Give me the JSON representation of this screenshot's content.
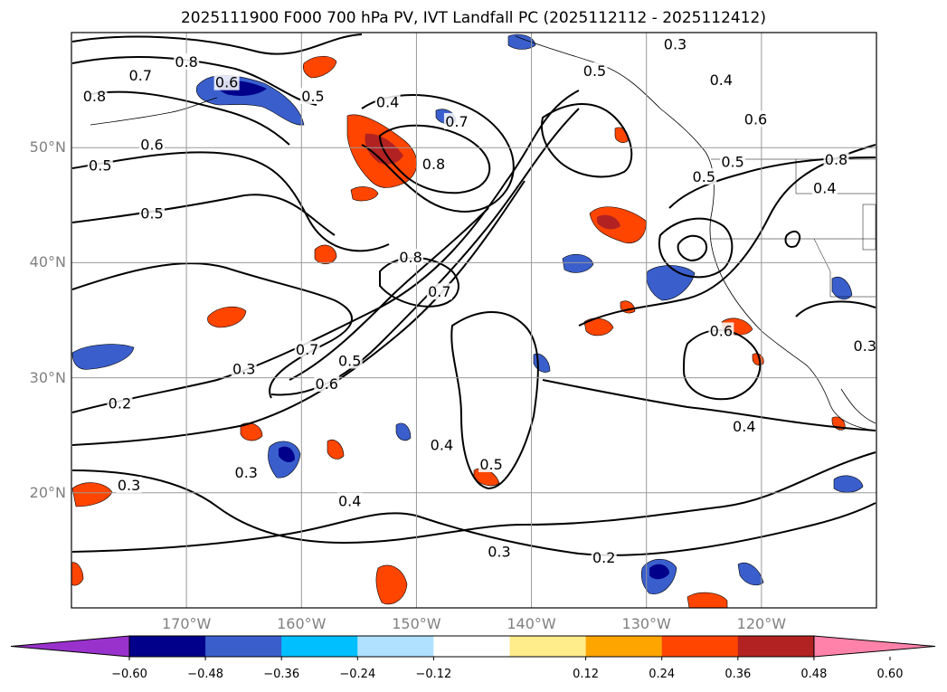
{
  "title": "2025111900 F000 700 hPa PV, IVT Landfall PC (2025112112 - 2025112412)",
  "map": {
    "projection": "equirectangular",
    "lon_range": [
      -180,
      -110
    ],
    "lat_range": [
      10,
      60
    ],
    "lat_ticks": [
      {
        "value": 20,
        "label": "20°N"
      },
      {
        "value": 30,
        "label": "30°N"
      },
      {
        "value": 40,
        "label": "40°N"
      },
      {
        "value": 50,
        "label": "50°N"
      }
    ],
    "lon_ticks": [
      {
        "value": -170,
        "label": "170°W"
      },
      {
        "value": -160,
        "label": "160°W"
      },
      {
        "value": -150,
        "label": "150°W"
      },
      {
        "value": -140,
        "label": "140°W"
      },
      {
        "value": -130,
        "label": "130°W"
      },
      {
        "value": -120,
        "label": "120°W"
      }
    ],
    "contour_labels": [
      {
        "text": "0.8",
        "lon": -170,
        "lat": 57.5
      },
      {
        "text": "0.7",
        "lon": -174,
        "lat": 56.3
      },
      {
        "text": "0.6",
        "lon": -166.5,
        "lat": 55.7
      },
      {
        "text": "0.8",
        "lon": -178,
        "lat": 54.5
      },
      {
        "text": "0.6",
        "lon": -173,
        "lat": 50.3
      },
      {
        "text": "0.5",
        "lon": -177.5,
        "lat": 48.5
      },
      {
        "text": "0.5",
        "lon": -173,
        "lat": 44.3
      },
      {
        "text": "0.5",
        "lon": -159,
        "lat": 54.5
      },
      {
        "text": "0.4",
        "lon": -152.5,
        "lat": 54
      },
      {
        "text": "0.7",
        "lon": -146.5,
        "lat": 52.3
      },
      {
        "text": "0.8",
        "lon": -148.5,
        "lat": 48.6
      },
      {
        "text": "0.8",
        "lon": -150.5,
        "lat": 40.5
      },
      {
        "text": "0.7",
        "lon": -148,
        "lat": 37.5
      },
      {
        "text": "0.7",
        "lon": -159.5,
        "lat": 32.5
      },
      {
        "text": "0.3",
        "lon": -165,
        "lat": 30.8
      },
      {
        "text": "0.6",
        "lon": -157.8,
        "lat": 29.5
      },
      {
        "text": "0.5",
        "lon": -155.8,
        "lat": 31.5
      },
      {
        "text": "0.2",
        "lon": -175.8,
        "lat": 27.8
      },
      {
        "text": "0.3",
        "lon": -164.8,
        "lat": 21.8
      },
      {
        "text": "0.3",
        "lon": -175,
        "lat": 20.7
      },
      {
        "text": "0.4",
        "lon": -155.8,
        "lat": 19.3
      },
      {
        "text": "0.4",
        "lon": -147.8,
        "lat": 24.2
      },
      {
        "text": "0.5",
        "lon": -143.5,
        "lat": 22.5
      },
      {
        "text": "0.3",
        "lon": -142.8,
        "lat": 14.9
      },
      {
        "text": "0.2",
        "lon": -133.7,
        "lat": 14.4
      },
      {
        "text": "0.5",
        "lon": -134.5,
        "lat": 56.7
      },
      {
        "text": "0.3",
        "lon": -127.5,
        "lat": 59
      },
      {
        "text": "0.4",
        "lon": -123.5,
        "lat": 55.9
      },
      {
        "text": "0.6",
        "lon": -120.5,
        "lat": 52.5
      },
      {
        "text": "0.5",
        "lon": -125,
        "lat": 47.5
      },
      {
        "text": "0.5",
        "lon": -122.5,
        "lat": 48.8
      },
      {
        "text": "0.8",
        "lon": -113.5,
        "lat": 49
      },
      {
        "text": "0.4",
        "lon": -114.5,
        "lat": 46.5
      },
      {
        "text": "0.6",
        "lon": -123.5,
        "lat": 34.1
      },
      {
        "text": "0.3",
        "lon": -111,
        "lat": 32.8
      },
      {
        "text": "0.4",
        "lon": -121.5,
        "lat": 25.8
      }
    ]
  },
  "colorbar": {
    "colors": [
      "#9932cc",
      "#00008b",
      "#3a5fcd",
      "#00bfff",
      "#b0e2ff",
      "#ffffff",
      "#ffec8b",
      "#ffa500",
      "#ff4500",
      "#b22222",
      "#ff82ab"
    ],
    "tick_labels": [
      "−0.60",
      "−0.48",
      "−0.36",
      "−0.24",
      "−0.12",
      "0.12",
      "0.24",
      "0.36",
      "0.48",
      "0.60"
    ]
  }
}
